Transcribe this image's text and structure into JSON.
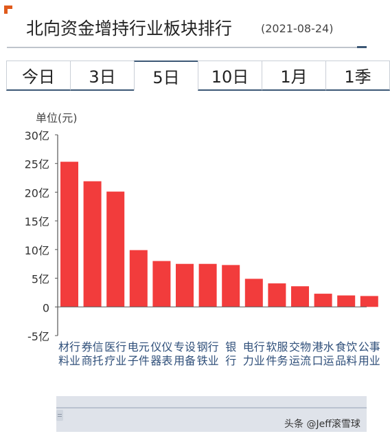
{
  "header": {
    "title": "北向资金增持行业板块排行",
    "date": "(2021-08-24)"
  },
  "tabs": [
    {
      "label": "今日",
      "active": false
    },
    {
      "label": "3日",
      "active": false
    },
    {
      "label": "5日",
      "active": true
    },
    {
      "label": "10日",
      "active": false
    },
    {
      "label": "1月",
      "active": false
    },
    {
      "label": "1季",
      "active": false
    }
  ],
  "chart_data": {
    "type": "bar",
    "ylabel": "单位(元)",
    "ylim": [
      -5,
      30
    ],
    "yticks": [
      30,
      25,
      20,
      15,
      10,
      5,
      0,
      -5
    ],
    "ytick_labels": [
      "30亿",
      "25亿",
      "20亿",
      "15亿",
      "10亿",
      "5亿",
      "0",
      "-5亿"
    ],
    "bar_color": "#f23c3c",
    "categories": [
      "材料行业",
      "券商信托",
      "医疗行业",
      "电子元件",
      "仪器仪表",
      "专用设备",
      "钢铁行业",
      "银行",
      "电力行业",
      "软件服务",
      "交运物流",
      "港口水运",
      "食品饮料",
      "公用事业"
    ],
    "values": [
      25.3,
      21.9,
      20.1,
      9.9,
      8.0,
      7.5,
      7.5,
      7.3,
      4.9,
      4.1,
      3.6,
      2.3,
      2.0,
      1.9
    ]
  },
  "watermark": "头条 @Jeff滚雪球"
}
